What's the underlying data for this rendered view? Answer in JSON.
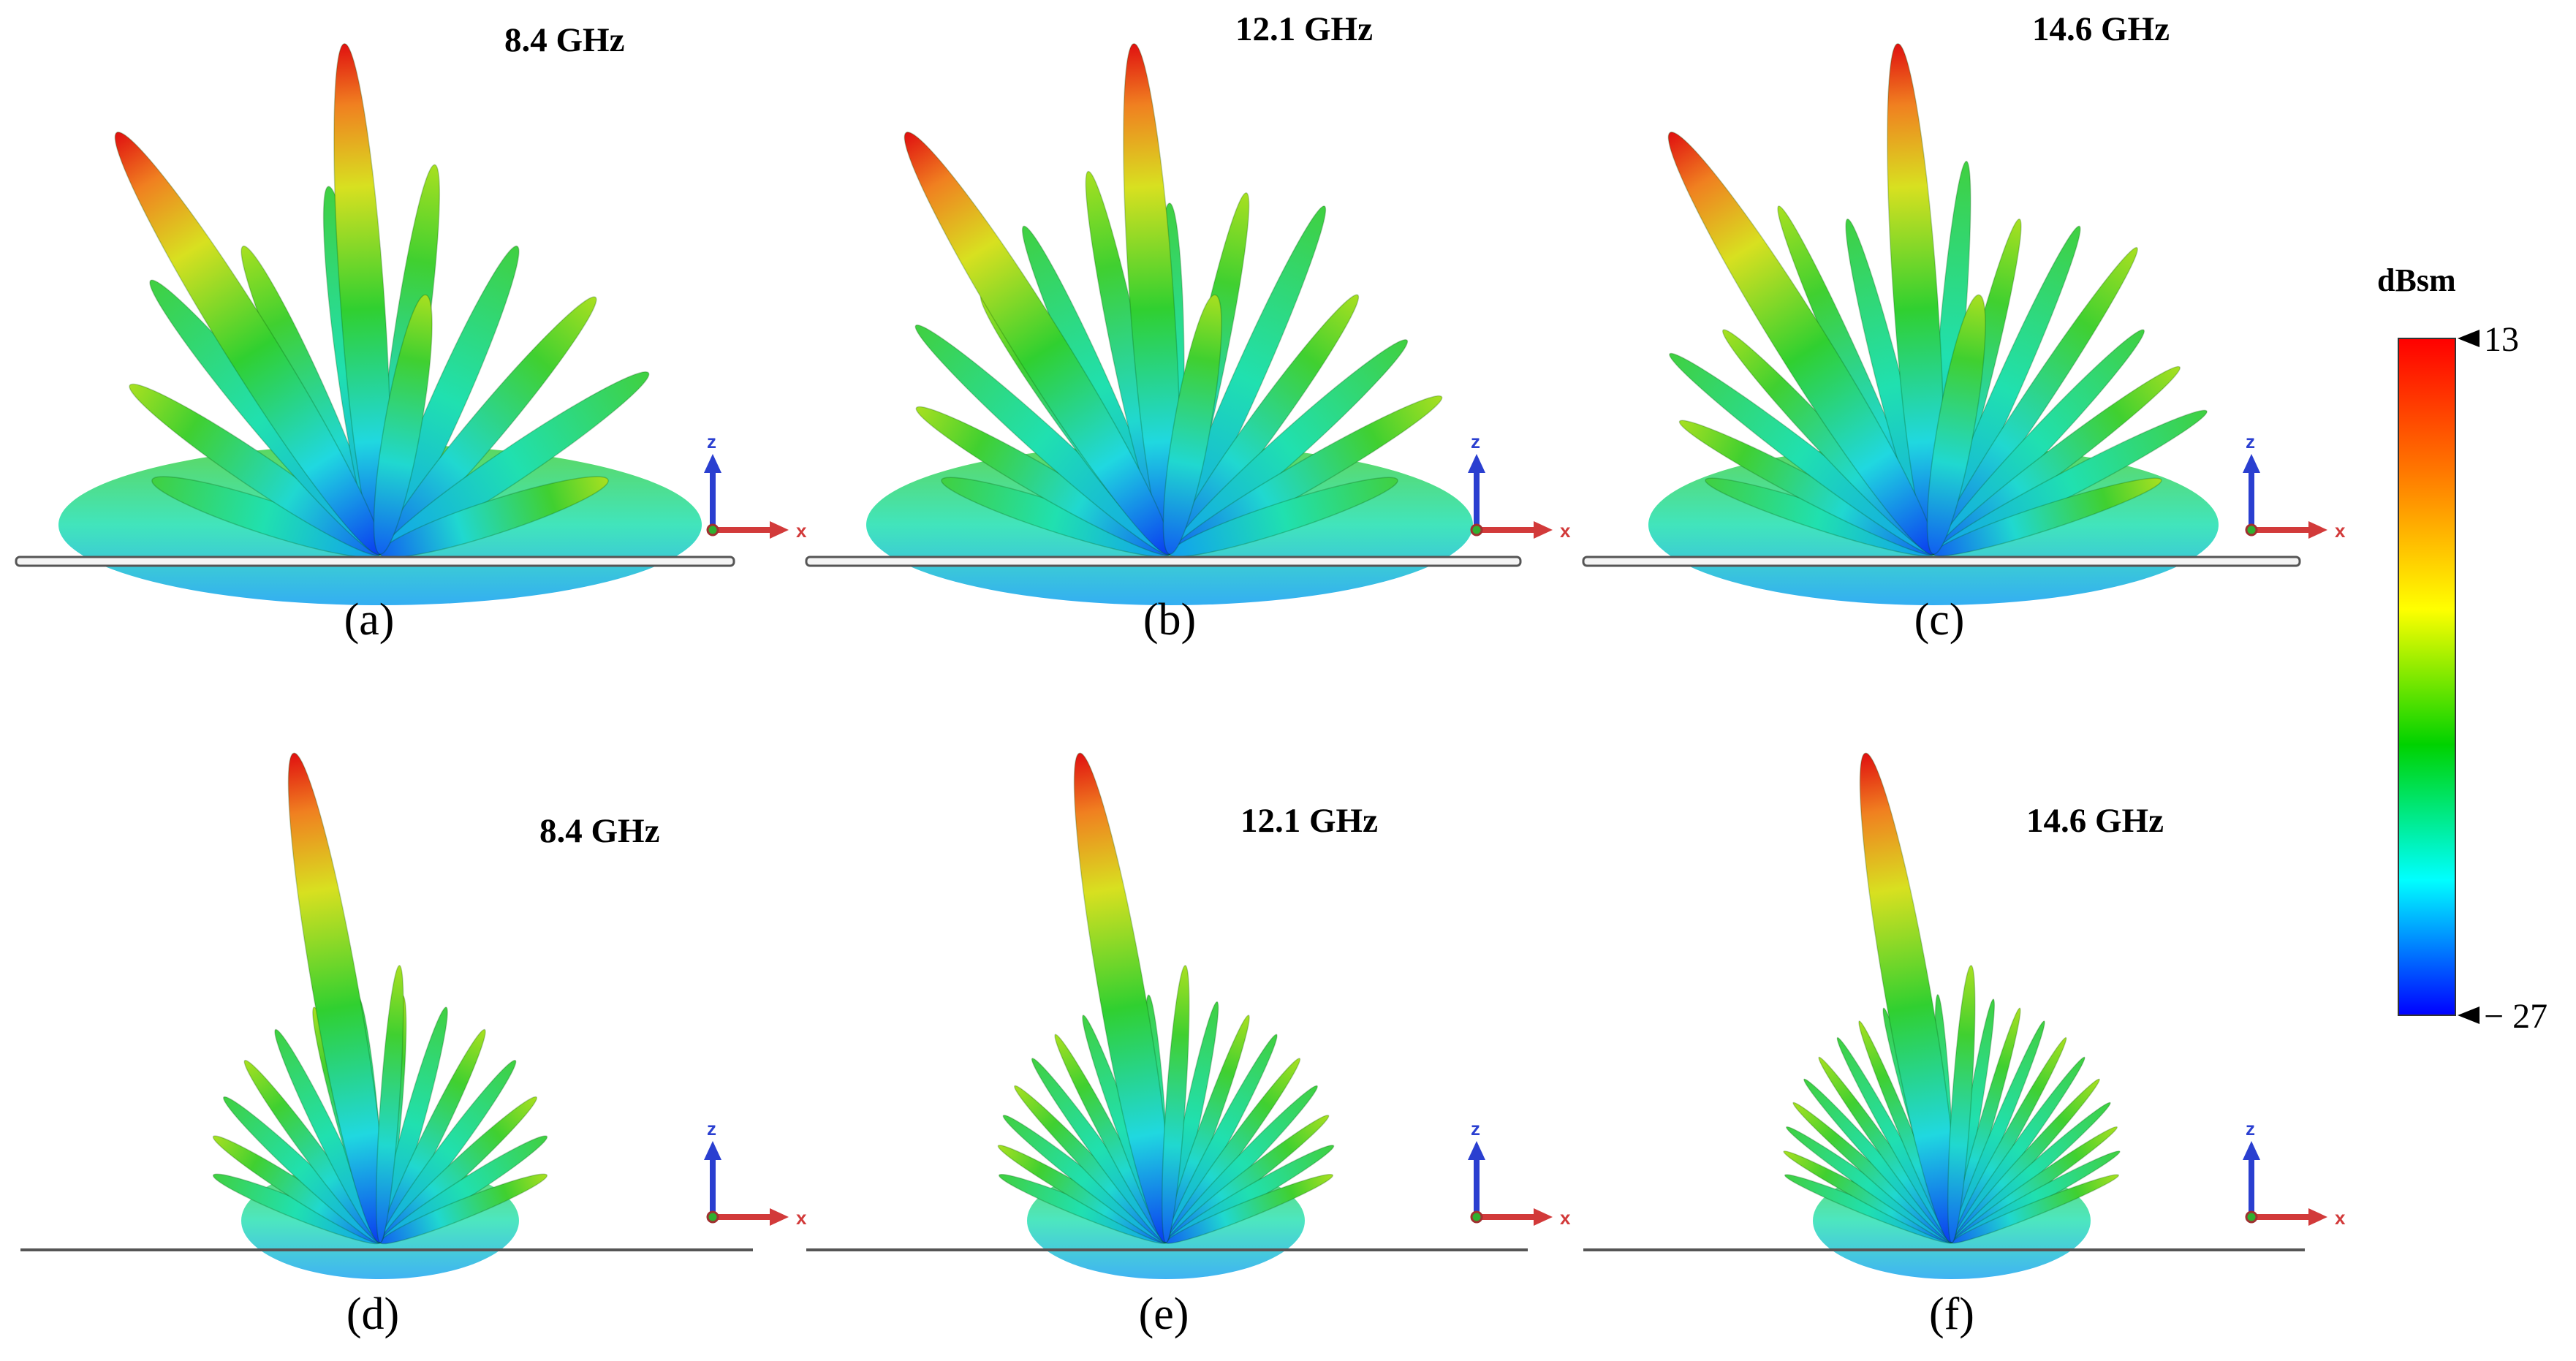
{
  "panels": [
    {
      "caption": "(a)",
      "frequency": "8.4 GHz"
    },
    {
      "caption": "(b)",
      "frequency": "12.1 GHz"
    },
    {
      "caption": "(c)",
      "frequency": "14.6 GHz"
    },
    {
      "caption": "(d)",
      "frequency": "8.4 GHz"
    },
    {
      "caption": "(e)",
      "frequency": "12.1 GHz"
    },
    {
      "caption": "(f)",
      "frequency": "14.6 GHz"
    }
  ],
  "axis_triad": {
    "z_label": "z",
    "x_label": "x"
  },
  "colorbar": {
    "title": "dBsm",
    "max_label": "13",
    "min_label": "− 27",
    "max": 13,
    "min": -27,
    "colors": [
      "#ff0000",
      "#ff7a00",
      "#ffff00",
      "#00d200",
      "#00ffff",
      "#0000ff"
    ]
  },
  "colors": {
    "axis_z": "#2a3fd0",
    "axis_x": "#d23a3a",
    "ground": "#555555"
  }
}
